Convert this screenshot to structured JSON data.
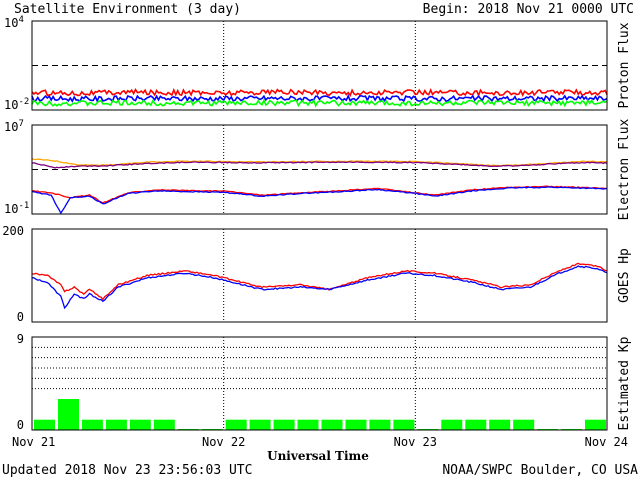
{
  "header": {
    "title": "Satellite Environment (3 day)",
    "begin": "Begin:  2018 Nov 21 0000 UTC"
  },
  "footer": {
    "updated": "Updated 2018 Nov 23 23:56:03 UTC",
    "credit": "NOAA/SWPC Boulder, CO USA"
  },
  "x_axis": {
    "label": "Universal Time",
    "ticks": [
      "Nov 21",
      "Nov 22",
      "Nov 23",
      "Nov 24"
    ],
    "range_days": [
      0,
      3
    ],
    "day_divider_style": "dotted"
  },
  "colors": {
    "red": "#ff0000",
    "blue": "#0000ff",
    "green": "#00ff00",
    "orange": "#ffa500",
    "purple": "#800080",
    "black": "#000000"
  },
  "chart_data": [
    {
      "id": "proton",
      "type": "line",
      "ylabel": "Proton Flux",
      "scale": "log",
      "ylim": [
        0.01,
        10000
      ],
      "ytick_labels": [
        {
          "base": "10",
          "exp": "4",
          "value": 10000
        },
        {
          "base": "10",
          "exp": "-2",
          "value": 0.01
        }
      ],
      "threshold": {
        "value": 10,
        "style": "dashed"
      },
      "series": [
        {
          "color": "red",
          "x": [
            0,
            0.25,
            0.5,
            0.75,
            1,
            1.25,
            1.5,
            1.75,
            2,
            2.25,
            2.5,
            2.75,
            3
          ],
          "values": [
            0.15,
            0.14,
            0.16,
            0.15,
            0.14,
            0.17,
            0.15,
            0.14,
            0.16,
            0.15,
            0.14,
            0.16,
            0.15
          ]
        },
        {
          "color": "blue",
          "x": [
            0,
            0.25,
            0.5,
            0.75,
            1,
            1.25,
            1.5,
            1.75,
            2,
            2.25,
            2.5,
            2.75,
            3
          ],
          "values": [
            0.06,
            0.055,
            0.06,
            0.058,
            0.06,
            0.062,
            0.058,
            0.06,
            0.057,
            0.06,
            0.059,
            0.061,
            0.06
          ]
        },
        {
          "color": "green",
          "x": [
            0,
            0.25,
            0.5,
            0.75,
            1,
            1.25,
            1.5,
            1.75,
            2,
            2.25,
            2.5,
            2.75,
            3
          ],
          "values": [
            0.03,
            0.028,
            0.03,
            0.029,
            0.03,
            0.031,
            0.029,
            0.03,
            0.028,
            0.03,
            0.029,
            0.03,
            0.03
          ]
        }
      ]
    },
    {
      "id": "electron",
      "type": "line",
      "ylabel": "Electron Flux",
      "scale": "log",
      "ylim": [
        0.1,
        10000000
      ],
      "ytick_labels": [
        {
          "base": "10",
          "exp": "7",
          "value": 10000000
        },
        {
          "base": "10",
          "exp": "-1",
          "value": 0.1
        }
      ],
      "threshold": {
        "value": 1000,
        "style": "dashed"
      },
      "series": [
        {
          "color": "orange",
          "x": [
            0,
            0.12,
            0.25,
            0.4,
            0.6,
            0.8,
            1,
            1.2,
            1.45,
            1.7,
            2,
            2.2,
            2.4,
            2.55,
            2.75,
            2.9,
            3
          ],
          "values": [
            9000,
            6000,
            2500,
            2500,
            4500,
            5500,
            5200,
            4700,
            5200,
            5500,
            5000,
            3600,
            2300,
            2500,
            4200,
            5600,
            4800
          ]
        },
        {
          "color": "purple",
          "x": [
            0,
            0.12,
            0.25,
            0.4,
            0.6,
            0.8,
            1,
            1.2,
            1.45,
            1.7,
            2,
            2.2,
            2.4,
            2.55,
            2.75,
            2.9,
            3
          ],
          "values": [
            4000,
            1500,
            2000,
            2200,
            3500,
            4500,
            4300,
            4000,
            4400,
            4500,
            4200,
            3000,
            2000,
            2200,
            3500,
            4200,
            3800
          ]
        },
        {
          "color": "red",
          "x": [
            0,
            0.1,
            0.2,
            0.3,
            0.37,
            0.5,
            0.65,
            0.85,
            1,
            1.2,
            1.4,
            1.6,
            1.8,
            2,
            2.1,
            2.3,
            2.5,
            2.7,
            2.85,
            3
          ],
          "values": [
            12,
            8,
            3,
            5,
            1,
            8,
            15,
            12,
            12,
            5,
            8,
            12,
            20,
            8,
            5,
            15,
            25,
            30,
            25,
            20
          ]
        },
        {
          "color": "blue",
          "x": [
            0,
            0.1,
            0.15,
            0.2,
            0.3,
            0.37,
            0.5,
            0.65,
            0.85,
            1,
            1.2,
            1.4,
            1.6,
            1.8,
            2,
            2.1,
            2.3,
            2.5,
            2.7,
            2.85,
            3
          ],
          "values": [
            10,
            5,
            0.12,
            3,
            4,
            0.8,
            7,
            12,
            10,
            9,
            4,
            7,
            10,
            16,
            7,
            4,
            12,
            22,
            26,
            22,
            18
          ]
        }
      ]
    },
    {
      "id": "goes-hp",
      "type": "line",
      "ylabel": "GOES Hp",
      "scale": "linear",
      "ylim": [
        0,
        200
      ],
      "ytick_labels": [
        {
          "text": "200",
          "value": 200
        },
        {
          "text": "0",
          "value": 0
        }
      ],
      "series": [
        {
          "color": "red",
          "x": [
            0,
            0.08,
            0.15,
            0.17,
            0.22,
            0.27,
            0.3,
            0.37,
            0.45,
            0.6,
            0.8,
            0.95,
            1.05,
            1.2,
            1.4,
            1.55,
            1.75,
            1.95,
            2.1,
            2.3,
            2.45,
            2.6,
            2.75,
            2.85,
            2.95,
            3
          ],
          "values": [
            105,
            100,
            80,
            65,
            75,
            60,
            70,
            50,
            80,
            100,
            110,
            100,
            90,
            75,
            80,
            70,
            95,
            110,
            105,
            90,
            75,
            80,
            110,
            125,
            120,
            110
          ]
        },
        {
          "color": "blue",
          "x": [
            0,
            0.08,
            0.15,
            0.17,
            0.22,
            0.27,
            0.3,
            0.37,
            0.45,
            0.6,
            0.8,
            0.95,
            1.05,
            1.2,
            1.4,
            1.55,
            1.75,
            1.95,
            2.1,
            2.3,
            2.45,
            2.6,
            2.75,
            2.85,
            2.95,
            3
          ],
          "values": [
            95,
            85,
            55,
            30,
            60,
            50,
            60,
            45,
            75,
            95,
            105,
            95,
            85,
            70,
            75,
            70,
            90,
            105,
            100,
            85,
            70,
            75,
            105,
            120,
            115,
            105
          ]
        }
      ]
    },
    {
      "id": "kp",
      "type": "bar",
      "ylabel": "Estimated Kp",
      "scale": "linear",
      "ylim": [
        0,
        9
      ],
      "ytick_labels": [
        {
          "text": "9",
          "value": 9
        },
        {
          "text": "0",
          "value": 0
        }
      ],
      "gridlines": [
        4,
        5,
        6,
        7,
        8,
        9
      ],
      "bar_color": "green",
      "values": [
        1,
        3,
        1,
        1,
        1,
        1,
        0.1,
        0.1,
        1,
        1,
        1,
        1,
        1,
        1,
        1,
        1,
        0.1,
        1,
        1,
        1,
        1,
        0.1,
        0.1,
        1
      ]
    }
  ]
}
